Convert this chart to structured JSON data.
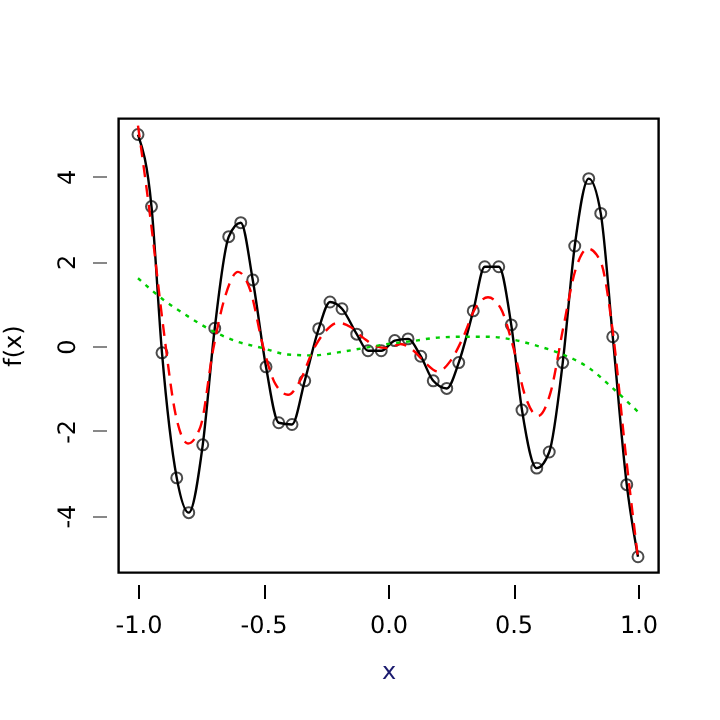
{
  "chart_data": {
    "type": "line",
    "xlabel": "x",
    "ylabel": "f(x)",
    "xlim": [
      -1.08,
      1.08
    ],
    "ylim": [
      -5.33,
      5.38
    ],
    "xticks": [
      {
        "value": -1,
        "label": "-1.0"
      },
      {
        "value": -0.5,
        "label": "-0.5"
      },
      {
        "value": 0,
        "label": "0.0"
      },
      {
        "value": 0.5,
        "label": "0.5"
      },
      {
        "value": 1,
        "label": "1.0"
      }
    ],
    "yticks": [
      -4,
      -2,
      0,
      2,
      4
    ],
    "grid": false,
    "series": [
      {
        "color": "#000000",
        "marker": "circle",
        "line_style": "solid",
        "x": [
          -1.0,
          -0.946,
          -0.904,
          -0.845,
          -0.797,
          -0.741,
          -0.693,
          -0.637,
          -0.589,
          -0.541,
          -0.488,
          -0.437,
          -0.384,
          -0.333,
          -0.277,
          -0.232,
          -0.184,
          -0.125,
          -0.08,
          -0.027,
          0.027,
          0.08,
          0.131,
          0.181,
          0.235,
          0.283,
          0.341,
          0.387,
          0.443,
          0.493,
          0.536,
          0.595,
          0.645,
          0.699,
          0.747,
          0.803,
          0.851,
          0.899,
          0.955,
          1.0
        ],
        "values": [
          4.99,
          3.29,
          -0.16,
          -3.11,
          -3.93,
          -2.33,
          0.42,
          2.58,
          2.91,
          1.56,
          -0.49,
          -1.81,
          -1.85,
          -0.82,
          0.41,
          1.04,
          0.88,
          0.28,
          -0.11,
          -0.11,
          0.13,
          0.17,
          -0.24,
          -0.82,
          -1.0,
          -0.39,
          0.83,
          1.87,
          1.87,
          0.5,
          -1.51,
          -2.88,
          -2.5,
          -0.39,
          2.36,
          3.95,
          3.13,
          0.22,
          -3.27,
          -4.97
        ]
      },
      {
        "color": "#ff0000",
        "marker": "none",
        "line_style": "dashed",
        "x": [
          -1.0,
          -0.95,
          -0.9,
          -0.85,
          -0.8,
          -0.75,
          -0.7,
          -0.65,
          -0.6,
          -0.55,
          -0.5,
          -0.45,
          -0.4,
          -0.35,
          -0.3,
          -0.25,
          -0.2,
          -0.15,
          -0.1,
          -0.05,
          0.0,
          0.05,
          0.1,
          0.15,
          0.2,
          0.25,
          0.3,
          0.35,
          0.4,
          0.45,
          0.5,
          0.55,
          0.6,
          0.65,
          0.7,
          0.75,
          0.8,
          0.85,
          0.9,
          0.95,
          1.0
        ],
        "values": [
          5.2,
          3.0,
          0.5,
          -1.6,
          -2.3,
          -1.9,
          -0.1,
          1.2,
          1.75,
          1.3,
          0.0,
          -0.9,
          -1.15,
          -0.8,
          -0.1,
          0.35,
          0.55,
          0.45,
          0.2,
          0.0,
          -0.05,
          0.05,
          -0.1,
          -0.4,
          -0.6,
          -0.35,
          0.2,
          0.9,
          1.15,
          0.9,
          0.0,
          -1.2,
          -1.65,
          -1.1,
          0.4,
          1.8,
          2.3,
          2.0,
          0.3,
          -2.5,
          -5.0
        ]
      },
      {
        "color": "#00cd00",
        "marker": "none",
        "line_style": "dotted",
        "x": [
          -1.0,
          -0.9,
          -0.8,
          -0.7,
          -0.6,
          -0.5,
          -0.4,
          -0.3,
          -0.2,
          -0.1,
          0.0,
          0.1,
          0.2,
          0.3,
          0.4,
          0.5,
          0.6,
          0.7,
          0.8,
          0.9,
          1.0
        ],
        "values": [
          1.6,
          1.1,
          0.7,
          0.35,
          0.1,
          -0.05,
          -0.2,
          -0.22,
          -0.15,
          -0.05,
          0.05,
          0.12,
          0.2,
          0.22,
          0.22,
          0.15,
          0.0,
          -0.2,
          -0.5,
          -1.0,
          -1.55
        ]
      }
    ]
  }
}
